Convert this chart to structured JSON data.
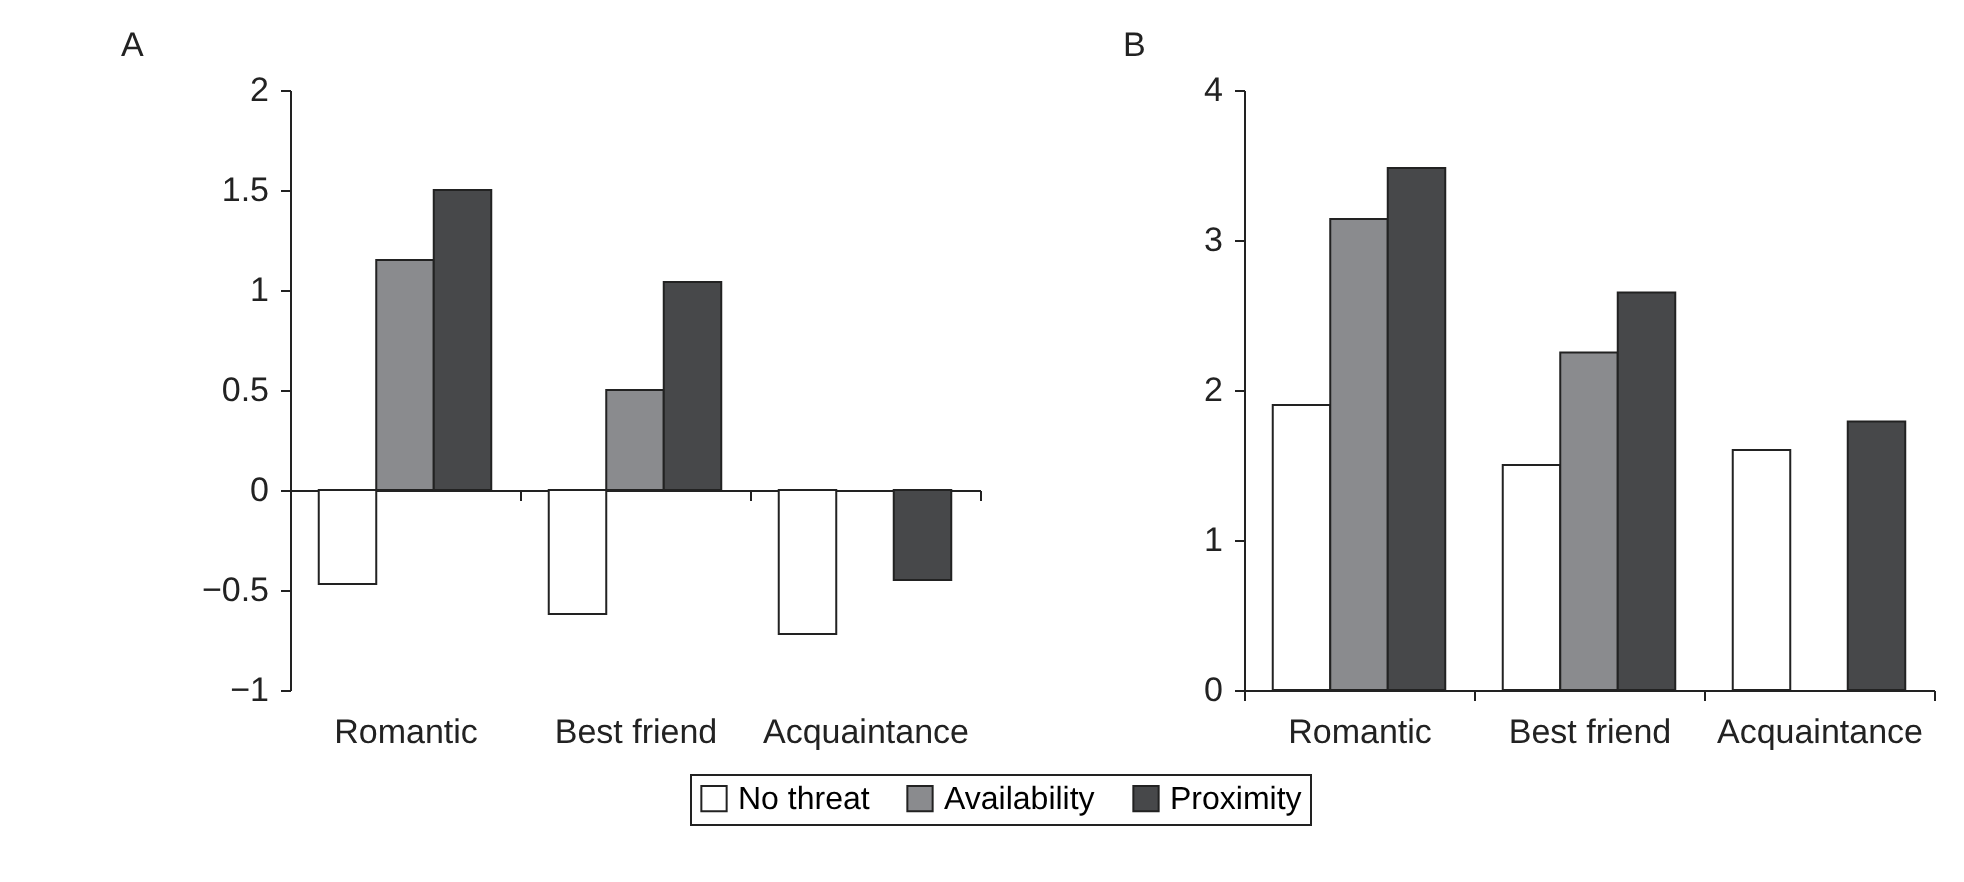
{
  "chart_data": [
    {
      "type": "bar",
      "title": "A",
      "categories": [
        "Romantic",
        "Best friend",
        "Acquaintance"
      ],
      "ylim": [
        -1,
        2
      ],
      "yticks": [
        {
          "value": -1,
          "label": "−1"
        },
        {
          "value": -0.5,
          "label": "−0.5"
        },
        0,
        0.5,
        1,
        1.5,
        2
      ],
      "legend": "bottom",
      "series": [
        {
          "name": "No threat",
          "color": "#ffffff",
          "values": [
            -0.47,
            -0.62,
            -0.72
          ]
        },
        {
          "name": "Availability",
          "color": "#8a8b8e",
          "values": [
            1.15,
            0.5,
            null
          ]
        },
        {
          "name": "Proximity",
          "color": "#47484a",
          "values": [
            1.5,
            1.04,
            -0.45
          ]
        }
      ]
    },
    {
      "type": "bar",
      "title": "B",
      "categories": [
        "Romantic",
        "Best friend",
        "Acquaintance"
      ],
      "ylim": [
        0,
        4
      ],
      "yticks": [
        0,
        1,
        2,
        3,
        4
      ],
      "legend": "bottom",
      "series": [
        {
          "name": "No threat",
          "color": "#ffffff",
          "values": [
            1.9,
            1.5,
            1.6
          ]
        },
        {
          "name": "Availability",
          "color": "#8a8b8e",
          "values": [
            3.14,
            2.25,
            null
          ]
        },
        {
          "name": "Proximity",
          "color": "#47484a",
          "values": [
            3.48,
            2.65,
            1.79
          ]
        }
      ]
    }
  ]
}
